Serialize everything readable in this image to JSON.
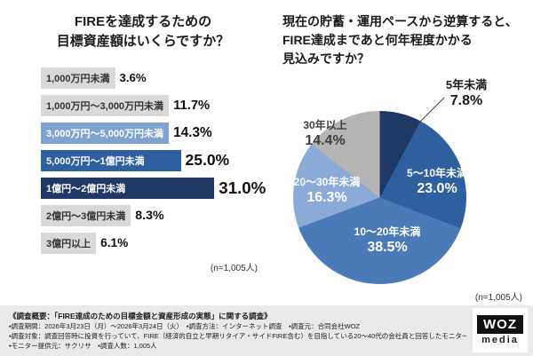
{
  "chart_data": [
    {
      "type": "bar",
      "title": "FIREを達成するための目標資産額はいくらですか？",
      "title_lines": [
        "FIREを達成するための",
        "目標資産額はいくらですか？"
      ],
      "categories": [
        "1,000万円未満",
        "1,000万円〜3,000万円未満",
        "3,000万円〜5,000万円未満",
        "5,000万円〜1億円未満",
        "1億円〜2億円未満",
        "2億円〜3億円未満",
        "3億円以上"
      ],
      "values": [
        3.6,
        11.7,
        14.3,
        25.0,
        31.0,
        8.3,
        6.1
      ],
      "colors": [
        "#d9d9d9",
        "#d9d9d9",
        "#7fa3d1",
        "#2e5f9e",
        "#1f3864",
        "#d9d9d9",
        "#d9d9d9"
      ],
      "label_colors": [
        "#333333",
        "#333333",
        "#ffffff",
        "#ffffff",
        "#ffffff",
        "#333333",
        "#333333"
      ],
      "xlabel": "",
      "ylabel": "",
      "note": "(n=1,005人)"
    },
    {
      "type": "pie",
      "title": "現在の貯蓄・運用ペースから逆算すると、FIRE達成まであと何年程度かかる見込みですか？",
      "title_lines": [
        "現在の貯蓄・運用ペースから逆算すると、",
        "FIRE達成まであと何年程度かかる",
        "見込みですか？"
      ],
      "categories": [
        "5年未満",
        "5〜10年未満",
        "10〜20年未満",
        "20〜30年未満",
        "30年以上"
      ],
      "values": [
        7.8,
        23.0,
        38.5,
        16.3,
        14.4
      ],
      "colors": [
        "#1f3864",
        "#2e5f9e",
        "#4a7ab8",
        "#8aabd8",
        "#b5b5b5"
      ],
      "label_colors": [
        "#1a1a1a",
        "#ffffff",
        "#ffffff",
        "#ffffff",
        "#3f3f3f"
      ],
      "start_angle_deg": 0,
      "direction": "clockwise",
      "note": "(n=1,005人)"
    }
  ],
  "footer": {
    "lines": [
      "《調査概要：「FIRE達成のための目標金額と資産形成の実態」に関する調査》",
      "▪調査期間：2026年3月23日（月）〜2026年3月24日（火）　▪調査方法：インターネット調査　▪調査元：合同会社WOZ",
      "▪調査対象：調査回答時に投資を行っていて、FIRE（経済的自立と早期リタイア・サイドFIRE含む）を目指している20〜40代の会社員と回答したモニター",
      "▪モニター提供元：サクリサ　▪調査人数：1,005人"
    ],
    "logo": {
      "woz": "WOZ",
      "media": "media"
    }
  }
}
